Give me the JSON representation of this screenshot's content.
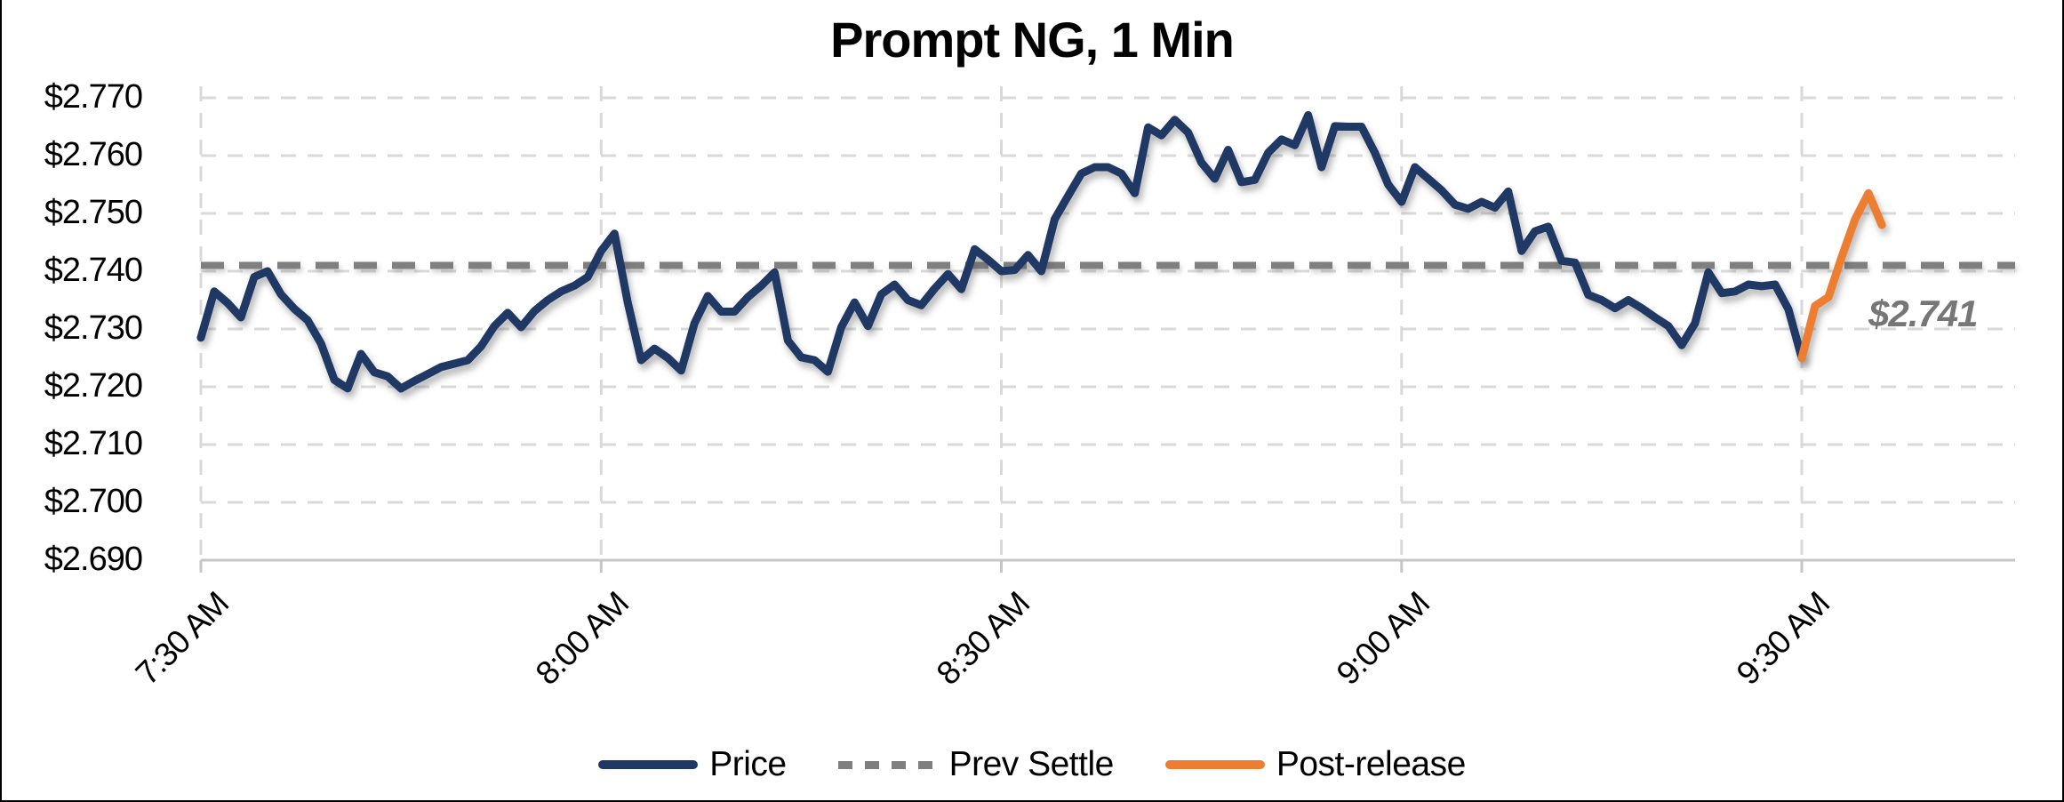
{
  "title": "Prompt NG, 1 Min",
  "annotation": {
    "text": "$2.741"
  },
  "colors": {
    "price": "#1f3864",
    "prev_settle": "#7f7f7f",
    "post_release": "#ed7d31",
    "gridline": "#d9d9d9",
    "axis_line": "#c6c6c6",
    "annotation": "#767676"
  },
  "legend": [
    {
      "label": "Price",
      "style": "solid-navy"
    },
    {
      "label": "Prev Settle",
      "style": "dashed-gray"
    },
    {
      "label": "Post-release",
      "style": "solid-orange"
    }
  ],
  "chart_data": {
    "type": "line",
    "title": "Prompt NG, 1 Min",
    "grid": "dashed",
    "legend_position": "bottom",
    "x_axis": {
      "tick_labels": [
        "7:30 AM",
        "8:00 AM",
        "8:30 AM",
        "9:00 AM",
        "9:30 AM"
      ],
      "tick_minutes": [
        0,
        30,
        60,
        90,
        120
      ],
      "interval": "1 minute"
    },
    "y_axis": {
      "tick_labels": [
        "$2.690",
        "$2.700",
        "$2.710",
        "$2.720",
        "$2.730",
        "$2.740",
        "$2.750",
        "$2.760",
        "$2.770"
      ],
      "min": 2.69,
      "max": 2.77,
      "step": 0.01,
      "format": "$x.xxx"
    },
    "prev_settle": 2.741,
    "annotation_text": "$2.741",
    "series": [
      {
        "name": "Price",
        "start_time": "7:30 AM",
        "start_minute": 0,
        "interval_minutes": 1,
        "values": [
          2.7285,
          2.7365,
          2.7345,
          2.732,
          2.739,
          2.74,
          2.736,
          2.7335,
          2.7315,
          2.7275,
          2.7212,
          2.7197,
          2.7257,
          2.7225,
          2.7218,
          2.7197,
          2.721,
          2.7222,
          2.7234,
          2.724,
          2.7246,
          2.727,
          2.7305,
          2.7328,
          2.7303,
          2.7331,
          2.735,
          2.7365,
          2.7375,
          2.739,
          2.7435,
          2.7465,
          2.7345,
          2.7246,
          2.7266,
          2.725,
          2.7228,
          2.731,
          2.7357,
          2.733,
          2.733,
          2.7355,
          2.7375,
          2.7398,
          2.728,
          2.7251,
          2.7246,
          2.7226,
          2.7303,
          2.7346,
          2.7305,
          2.736,
          2.7377,
          2.735,
          2.7341,
          2.737,
          2.7395,
          2.7369,
          2.7438,
          2.742,
          2.74,
          2.7402,
          2.7428,
          2.74,
          2.749,
          2.753,
          2.7569,
          2.758,
          2.758,
          2.7569,
          2.7535,
          2.7649,
          2.7635,
          2.7662,
          2.764,
          2.7588,
          2.756,
          2.761,
          2.7554,
          2.7558,
          2.7605,
          2.7628,
          2.7618,
          2.767,
          2.758,
          2.7651,
          2.765,
          2.765,
          2.7605,
          2.755,
          2.752,
          2.758,
          2.756,
          2.754,
          2.7515,
          2.7508,
          2.752,
          2.751,
          2.7538,
          2.7435,
          2.7469,
          2.7477,
          2.7418,
          2.7415,
          2.7359,
          2.735,
          2.7336,
          2.735,
          2.7336,
          2.732,
          2.7305,
          2.7272,
          2.731,
          2.7398,
          2.7362,
          2.7365,
          2.7377,
          2.7374,
          2.7377,
          2.7334,
          2.725
        ]
      },
      {
        "name": "Post-release",
        "start_time": "9:30 AM",
        "start_minute": 120,
        "interval_minutes": 1,
        "values": [
          2.725,
          2.734,
          2.7355,
          2.7425,
          2.749,
          2.7535,
          2.748
        ]
      }
    ]
  }
}
